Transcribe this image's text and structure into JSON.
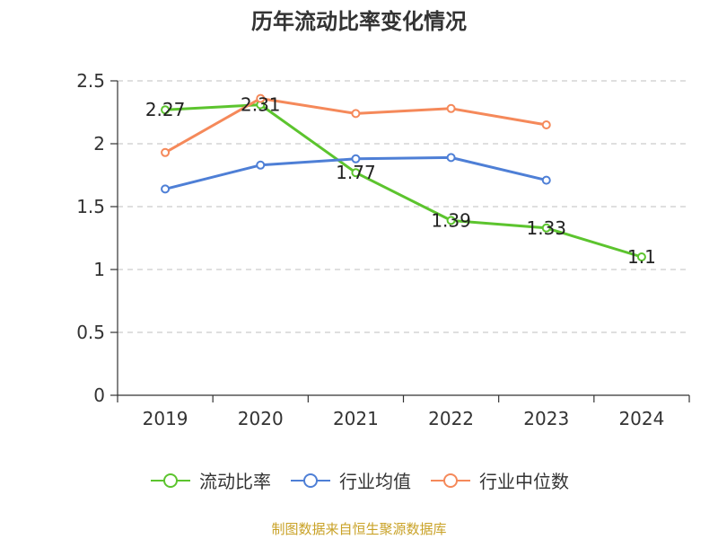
{
  "chart_data": {
    "type": "line",
    "title": "历年流动比率变化情况",
    "categories": [
      "2019",
      "2020",
      "2021",
      "2022",
      "2023",
      "2024"
    ],
    "ylim": [
      0,
      2.5
    ],
    "yticks": [
      "0",
      "0.5",
      "1",
      "1.5",
      "2",
      "2.5"
    ],
    "grid": true,
    "legend_position": "bottom",
    "series": [
      {
        "name": "流动比率",
        "color": "#5cc42e",
        "values": [
          2.27,
          2.31,
          1.77,
          1.39,
          1.33,
          1.1
        ],
        "labels": [
          "2.27",
          "2.31",
          "1.77",
          "1.39",
          "1.33",
          "1.1"
        ]
      },
      {
        "name": "行业均值",
        "color": "#4e7fd6",
        "values": [
          1.64,
          1.83,
          1.88,
          1.89,
          1.71,
          null
        ]
      },
      {
        "name": "行业中位数",
        "color": "#f5895a",
        "values": [
          1.93,
          2.36,
          2.24,
          2.28,
          2.15,
          null
        ]
      }
    ]
  },
  "source_text": "制图数据来自恒生聚源数据库"
}
